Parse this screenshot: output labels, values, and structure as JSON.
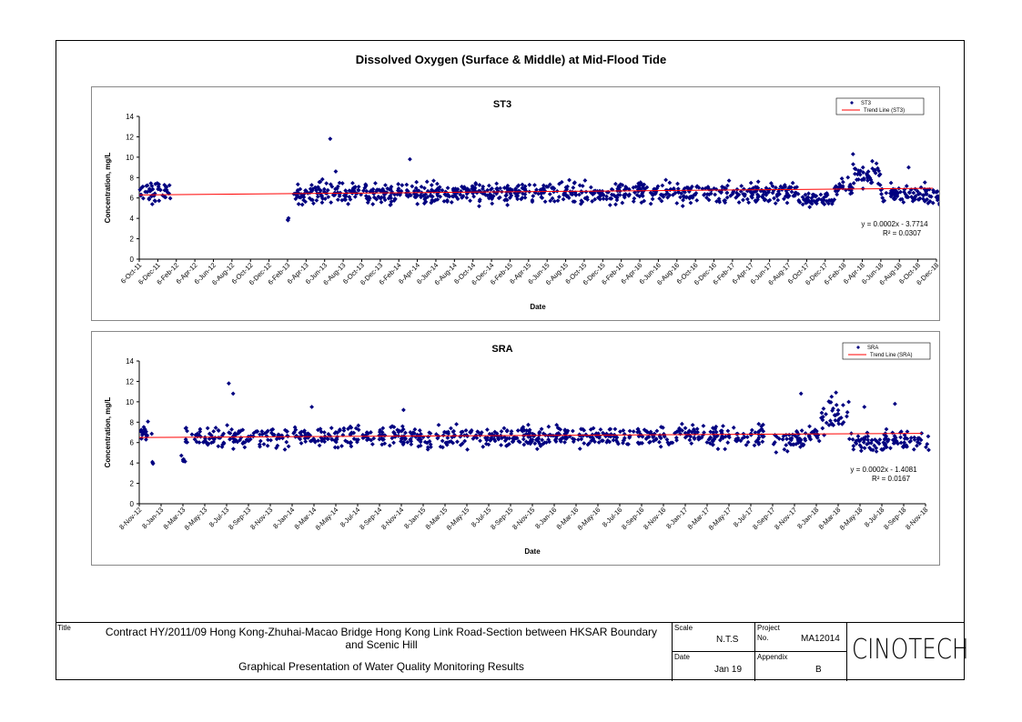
{
  "page_title": "Dissolved Oxygen (Surface & Middle) at Mid-Flood Tide",
  "colors": {
    "marker": "#000080",
    "trend": "#ff0000"
  },
  "chart_data": [
    {
      "type": "scatter",
      "title": "ST3",
      "xlabel": "Date",
      "ylabel": "Concentration, mg/L",
      "ylim": [
        0,
        14
      ],
      "yticks": [
        "0",
        "2",
        "4",
        "6",
        "8",
        "10",
        "12",
        "14"
      ],
      "xticks": [
        "6-Oct-11",
        "6-Dec-11",
        "6-Feb-12",
        "6-Apr-12",
        "6-Jun-12",
        "6-Aug-12",
        "6-Oct-12",
        "6-Dec-12",
        "6-Feb-13",
        "6-Apr-13",
        "6-Jun-13",
        "6-Aug-13",
        "6-Oct-13",
        "6-Dec-13",
        "6-Feb-14",
        "6-Apr-14",
        "6-Jun-14",
        "6-Aug-14",
        "6-Oct-14",
        "6-Dec-14",
        "6-Feb-15",
        "6-Apr-15",
        "6-Jun-15",
        "6-Aug-15",
        "6-Oct-15",
        "6-Dec-15",
        "6-Feb-16",
        "6-Apr-16",
        "6-Jun-16",
        "6-Aug-16",
        "6-Oct-16",
        "6-Dec-16",
        "6-Feb-17",
        "6-Apr-17",
        "6-Jun-17",
        "6-Aug-17",
        "6-Oct-17",
        "6-Dec-17",
        "6-Feb-18",
        "6-Apr-18",
        "6-Jun-18",
        "6-Aug-18",
        "6-Oct-18",
        "6-Dec-18"
      ],
      "legend": {
        "position": "top-right",
        "entries": [
          "ST3",
          "Trend Line (ST3)"
        ]
      },
      "trend": {
        "equation": "y = 0.0002x - 3.7714",
        "r2": "R² = 0.0307",
        "start": 6.3,
        "end": 6.95
      },
      "segments": [
        {
          "from": 0,
          "to": 1.7,
          "level": 6.5,
          "amp": 0.9
        },
        {
          "from": 8.0,
          "to": 8.1,
          "level": 3.9,
          "amp": 0.2
        },
        {
          "from": 8.3,
          "to": 35.5,
          "level": 6.5,
          "amp": 0.9
        },
        {
          "from": 35.5,
          "to": 37.5,
          "level": 5.9,
          "amp": 0.6
        },
        {
          "from": 37.5,
          "to": 38.5,
          "level": 7.0,
          "amp": 0.8
        },
        {
          "from": 38.5,
          "to": 40.0,
          "level": 8.4,
          "amp": 1.1
        },
        {
          "from": 40.0,
          "to": 43.2,
          "level": 6.2,
          "amp": 0.9
        }
      ],
      "outliers": [
        [
          10.3,
          11.8
        ],
        [
          14.6,
          9.8
        ],
        [
          38.5,
          10.3
        ],
        [
          41.5,
          9.0
        ],
        [
          10.6,
          8.6
        ],
        [
          37.9,
          7.9
        ]
      ]
    },
    {
      "type": "scatter",
      "title": "SRA",
      "xlabel": "Date",
      "ylabel": "Concentration, mg/L",
      "ylim": [
        0,
        14
      ],
      "yticks": [
        "0",
        "2",
        "4",
        "6",
        "8",
        "10",
        "12",
        "14"
      ],
      "xticks": [
        "8-Nov-12",
        "8-Jan-13",
        "8-Mar-13",
        "8-May-13",
        "8-Jul-13",
        "8-Sep-13",
        "8-Nov-13",
        "8-Jan-14",
        "8-Mar-14",
        "8-May-14",
        "8-Jul-14",
        "8-Sep-14",
        "8-Nov-14",
        "8-Jan-15",
        "8-Mar-15",
        "8-May-15",
        "8-Jul-15",
        "8-Sep-15",
        "8-Nov-15",
        "8-Jan-16",
        "8-Mar-16",
        "8-May-16",
        "8-Jul-16",
        "8-Sep-16",
        "8-Nov-16",
        "8-Jan-17",
        "8-Mar-17",
        "8-May-17",
        "8-Jul-17",
        "8-Sep-17",
        "8-Nov-17",
        "8-Jan-18",
        "8-Mar-18",
        "8-May-18",
        "8-Jul-18",
        "8-Sep-18",
        "8-Nov-18"
      ],
      "legend": {
        "position": "top-right",
        "entries": [
          "SRA",
          "Trend Line (SRA)"
        ]
      },
      "trend": {
        "equation": "y = 0.0002x - 1.4081",
        "r2": "R² = 0.0167",
        "start": 6.5,
        "end": 6.9
      },
      "segments": [
        {
          "from": 0,
          "to": 0.6,
          "level": 7.0,
          "amp": 0.8
        },
        {
          "from": 0.6,
          "to": 0.7,
          "level": 4.0,
          "amp": 0.1
        },
        {
          "from": 1.9,
          "to": 2.1,
          "level": 4.3,
          "amp": 0.3
        },
        {
          "from": 2.1,
          "to": 28.6,
          "level": 6.6,
          "amp": 0.9
        },
        {
          "from": 29.0,
          "to": 30.5,
          "level": 6.1,
          "amp": 0.9
        },
        {
          "from": 30.5,
          "to": 31.2,
          "level": 7.0,
          "amp": 1.0
        },
        {
          "from": 31.2,
          "to": 32.5,
          "level": 8.6,
          "amp": 1.3
        },
        {
          "from": 32.5,
          "to": 36.2,
          "level": 6.1,
          "amp": 0.9
        }
      ],
      "outliers": [
        [
          4.1,
          11.8
        ],
        [
          4.3,
          10.8
        ],
        [
          7.9,
          9.5
        ],
        [
          12.1,
          9.2
        ],
        [
          30.3,
          10.8
        ],
        [
          31.9,
          10.9
        ],
        [
          33.2,
          9.5
        ],
        [
          34.6,
          9.8
        ],
        [
          31.7,
          10.5
        ]
      ]
    }
  ],
  "footer": {
    "title_label": "Title",
    "title_line1": "Contract HY/2011/09 Hong Kong-Zhuhai-Macao Bridge Hong Kong Link Road-Section between HKSAR Boundary",
    "title_line2": "and Scenic Hill",
    "subtitle": "Graphical Presentation of Water Quality Monitoring Results",
    "scale_label": "Scale",
    "scale_value": "N.T.S",
    "project_label": "Project",
    "project_no_label": "No.",
    "project_value": "MA12014",
    "date_label": "Date",
    "date_value": "Jan 19",
    "appendix_label": "Appendix",
    "appendix_value": "B",
    "logo": "CINOTECH"
  }
}
